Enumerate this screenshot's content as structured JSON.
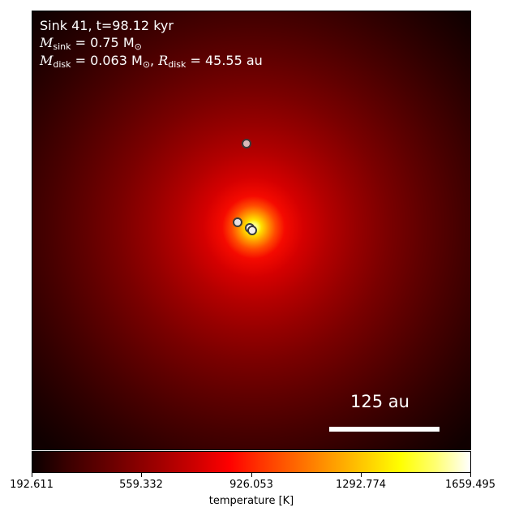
{
  "annotation": {
    "line1": "Sink 41, t=98.12 kyr",
    "sink_mass_symbol": "M",
    "sink_mass_sub": "sink",
    "sink_mass_value": " = 0.75 M",
    "sun_symbol": "⊙",
    "disk_mass_symbol": "M",
    "disk_mass_sub": "disk",
    "disk_mass_value": " = 0.063 M",
    "disk_radius_symbol": "R",
    "disk_radius_sub": "disk",
    "disk_radius_value": " = 45.55 au"
  },
  "scalebar": {
    "label": "125 au"
  },
  "colorbar": {
    "ticks": [
      "192.611",
      "559.332",
      "926.053",
      "1292.774",
      "1659.495"
    ],
    "label": "temperature [K]",
    "colormap": "hot"
  },
  "sink_markers": [
    {
      "name": "sink-upper",
      "color": "#d9b8b8"
    },
    {
      "name": "sink-left",
      "color": "#e8e0e0"
    },
    {
      "name": "sink-center-a",
      "color": "#f4f0f0"
    },
    {
      "name": "sink-center-b",
      "color": "#f4f0f0"
    }
  ]
}
